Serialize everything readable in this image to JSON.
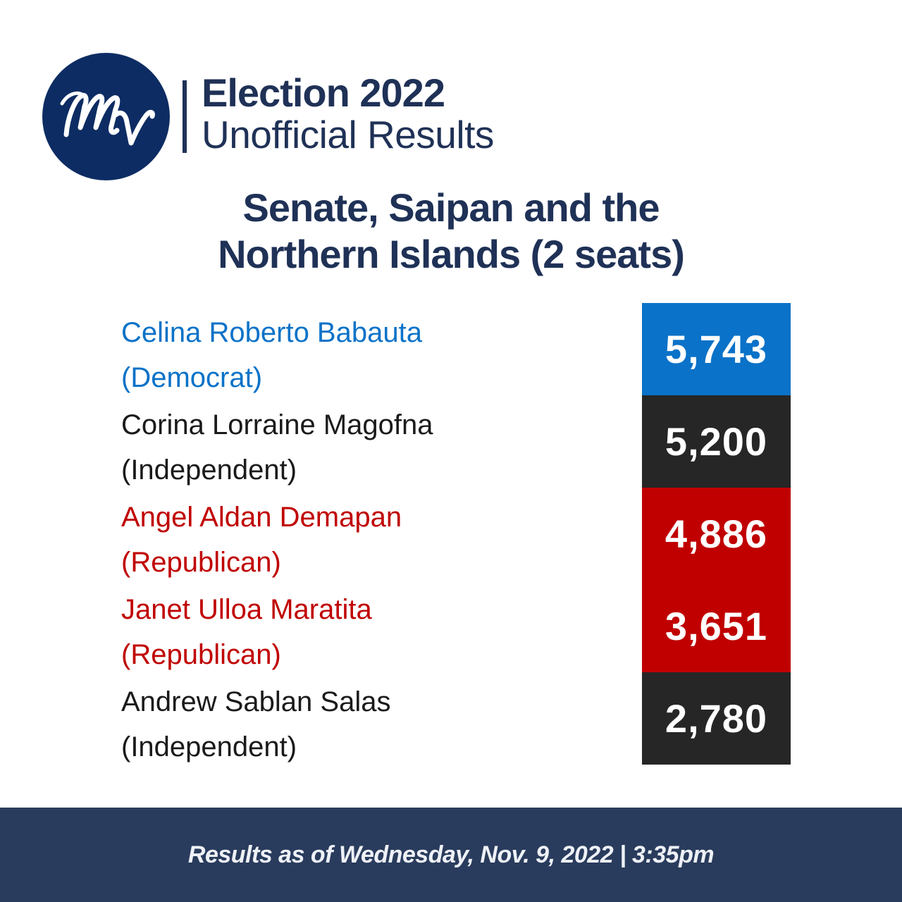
{
  "header": {
    "logo_text": "MV",
    "title": "Election 2022",
    "subtitle": "Unofficial Results"
  },
  "race": {
    "title_line1": "Senate, Saipan and the",
    "title_line2": "Northern Islands (2 seats)"
  },
  "candidates": [
    {
      "name": "Celina Roberto Babauta",
      "party": "(Democrat)",
      "votes": "5,743",
      "name_color": "#0a72c8",
      "box_color": "#0a72c8"
    },
    {
      "name": "Corina Lorraine Magofna",
      "party": "(Independent)",
      "votes": "5,200",
      "name_color": "#1a1a1a",
      "box_color": "#262626"
    },
    {
      "name": "Angel Aldan Demapan",
      "party": "(Republican)",
      "votes": "4,886",
      "name_color": "#c00000",
      "box_color": "#c00000"
    },
    {
      "name": "Janet Ulloa Maratita",
      "party": "(Republican)",
      "votes": "3,651",
      "name_color": "#c00000",
      "box_color": "#c00000"
    },
    {
      "name": "Andrew Sablan Salas",
      "party": "(Independent)",
      "votes": "2,780",
      "name_color": "#1a1a1a",
      "box_color": "#262626"
    }
  ],
  "footer": {
    "text": "Results as of Wednesday, Nov. 9, 2022 | 3:35pm"
  }
}
